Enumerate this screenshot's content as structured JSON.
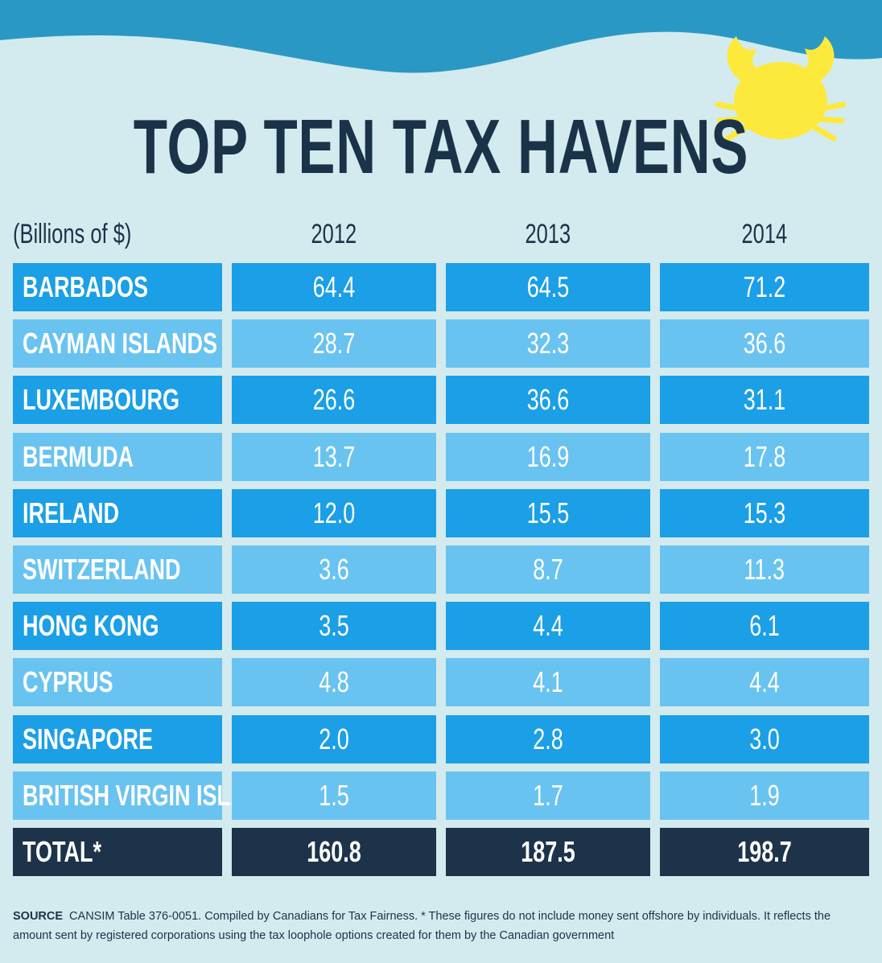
{
  "colors": {
    "background": "#d3ebee",
    "wave": "#2a98c4",
    "row_dark": "#1b9fe6",
    "row_light": "#69c3f0",
    "total": "#1d3349",
    "title": "#1b3349",
    "crab": "#fde93c"
  },
  "icons": [
    "wave-decoration",
    "crab-icon"
  ],
  "title": "TOP TEN TAX HAVENS",
  "chart_data": {
    "type": "table",
    "title": "TOP TEN TAX HAVENS",
    "unit_label": "(Billions of $)",
    "columns": [
      "2012",
      "2013",
      "2014"
    ],
    "rows": [
      {
        "name": "BARBADOS",
        "values": [
          "64.4",
          "64.5",
          "71.2"
        ]
      },
      {
        "name": "CAYMAN ISLANDS",
        "values": [
          "28.7",
          "32.3",
          "36.6"
        ]
      },
      {
        "name": "LUXEMBOURG",
        "values": [
          "26.6",
          "36.6",
          "31.1"
        ]
      },
      {
        "name": "BERMUDA",
        "values": [
          "13.7",
          "16.9",
          "17.8"
        ]
      },
      {
        "name": "IRELAND",
        "values": [
          "12.0",
          "15.5",
          "15.3"
        ]
      },
      {
        "name": "SWITZERLAND",
        "values": [
          "3.6",
          "8.7",
          "11.3"
        ]
      },
      {
        "name": "HONG KONG",
        "values": [
          "3.5",
          "4.4",
          "6.1"
        ]
      },
      {
        "name": "CYPRUS",
        "values": [
          "4.8",
          "4.1",
          "4.4"
        ]
      },
      {
        "name": "SINGAPORE",
        "values": [
          "2.0",
          "2.8",
          "3.0"
        ]
      },
      {
        "name": "BRITISH VIRGIN ISLANDS",
        "values": [
          "1.5",
          "1.7",
          "1.9"
        ]
      }
    ],
    "total": {
      "name": "TOTAL*",
      "values": [
        "160.8",
        "187.5",
        "198.7"
      ]
    }
  },
  "source": {
    "label": "SOURCE",
    "text": "CANSIM Table 376-0051. Compiled by Canadians for Tax Fairness.    * These figures do not include money sent offshore by individuals. It reflects the amount sent by registered corporations using the tax loophole options created for them by the Canadian government"
  }
}
